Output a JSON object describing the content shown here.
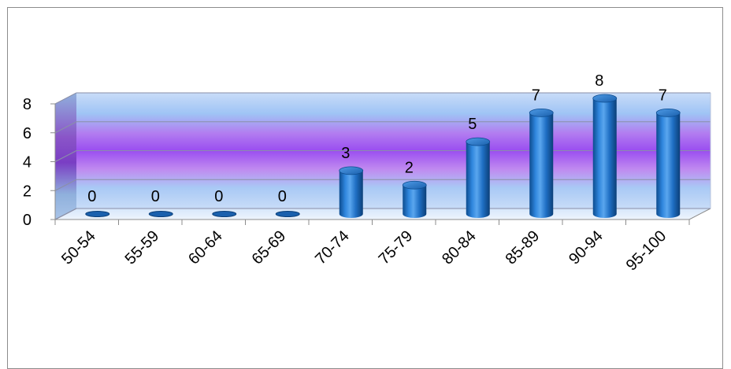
{
  "chart_data": {
    "type": "bar",
    "categories": [
      "50-54",
      "55-59",
      "60-64",
      "65-69",
      "70-74",
      "75-79",
      "80-84",
      "85-89",
      "90-94",
      "95-100"
    ],
    "values": [
      0,
      0,
      0,
      0,
      3,
      2,
      5,
      7,
      8,
      7
    ],
    "data_labels": [
      "0",
      "0",
      "0",
      "0",
      "3",
      "2",
      "5",
      "7",
      "8",
      "7"
    ],
    "y_ticks": [
      "0",
      "2",
      "4",
      "6",
      "8"
    ],
    "ylim": [
      0,
      8
    ],
    "title": "",
    "xlabel": "",
    "ylabel": "",
    "grid": true,
    "legend": "none",
    "colors": {
      "bar": "#1f6fc4",
      "bar_dark": "#0d4c8f",
      "bar_light": "#5aa6ee",
      "wall_blue": "#a9c9f5",
      "wall_purple": "#a65cf0",
      "axis": "#8c8c8c"
    }
  }
}
